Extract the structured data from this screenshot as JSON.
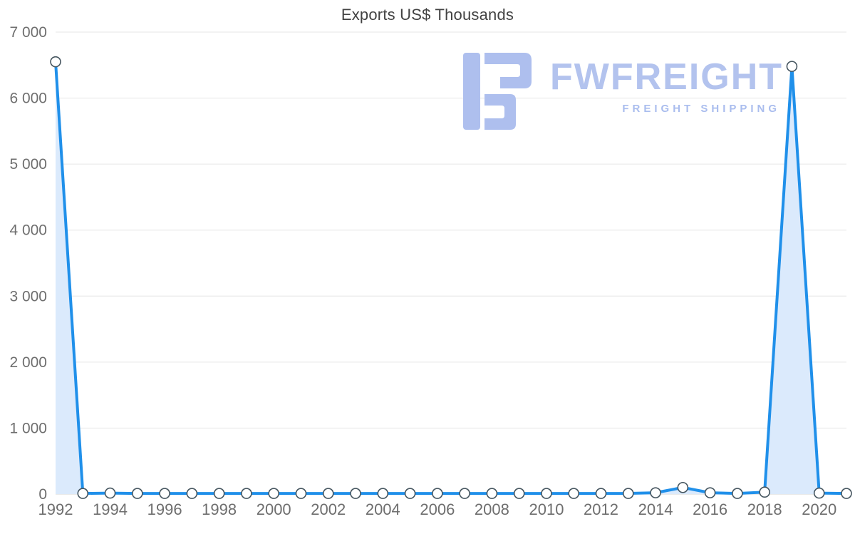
{
  "title": "Exports US$ Thousands",
  "watermark": {
    "brand": "FWFREIGHT",
    "tagline": "FREIGHT SHIPPING",
    "logo_color": "#aebfee",
    "text_color": "#b3c3ee"
  },
  "chart_data": {
    "type": "area",
    "title": "Exports US$ Thousands",
    "x": [
      1992,
      1993,
      1994,
      1995,
      1996,
      1997,
      1998,
      1999,
      2000,
      2001,
      2002,
      2003,
      2004,
      2005,
      2006,
      2007,
      2008,
      2009,
      2010,
      2011,
      2012,
      2013,
      2014,
      2015,
      2016,
      2017,
      2018,
      2019,
      2020,
      2021
    ],
    "values": [
      6550,
      10,
      15,
      10,
      10,
      10,
      10,
      10,
      10,
      10,
      10,
      10,
      10,
      10,
      10,
      10,
      10,
      10,
      10,
      10,
      10,
      10,
      20,
      100,
      20,
      10,
      30,
      6480,
      15,
      10
    ],
    "xticks": [
      1992,
      1994,
      1996,
      1998,
      2000,
      2002,
      2004,
      2006,
      2008,
      2010,
      2012,
      2014,
      2016,
      2018,
      2020
    ],
    "yticks": [
      0,
      1000,
      2000,
      3000,
      4000,
      5000,
      6000,
      7000
    ],
    "ytick_labels": [
      "0",
      "1 000",
      "2 000",
      "3 000",
      "4 000",
      "5 000",
      "6 000",
      "7 000"
    ],
    "ylim": [
      0,
      7000
    ],
    "xlabel": "",
    "ylabel": "",
    "grid": true,
    "legend": "none",
    "line_color": "#2090ea",
    "fill_color": "#dbeafc",
    "point_fill": "#ffffff",
    "point_stroke": "#45555f",
    "grid_color": "#e6e6e6",
    "axis_line_color": "#d6d6d6",
    "tick_label_color": "#6e6e6e"
  }
}
